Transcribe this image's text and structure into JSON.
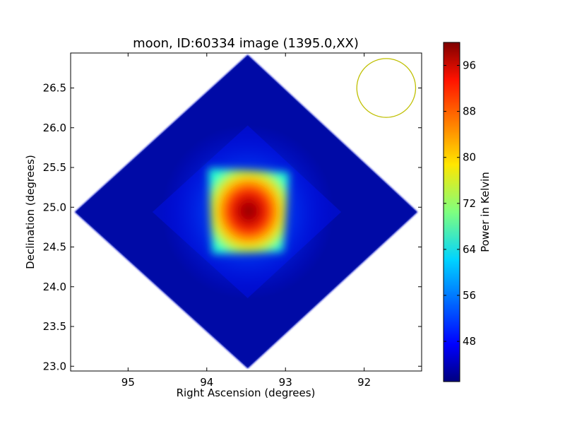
{
  "chart_data": {
    "type": "heatmap",
    "title": "moon, ID:60334 image (1395.0,XX)",
    "xlabel": "Right Ascension (degrees)",
    "ylabel": "Declination (degrees)",
    "xlim": [
      95.73,
      91.27
    ],
    "ylim": [
      22.94,
      26.94
    ],
    "x_axis_inverted": true,
    "x_ticks": [
      95,
      94,
      93,
      92
    ],
    "x_tick_labels": [
      "95",
      "94",
      "93",
      "92"
    ],
    "y_ticks": [
      23.0,
      23.5,
      24.0,
      24.5,
      25.0,
      25.5,
      26.0,
      26.5
    ],
    "y_tick_labels": [
      "23.0",
      "23.5",
      "24.0",
      "24.5",
      "25.0",
      "25.5",
      "26.0",
      "26.5"
    ],
    "grid": false,
    "colormap": "jet",
    "colorbar": {
      "label": "Power in Kelvin",
      "range": [
        41,
        100
      ],
      "ticks": [
        48,
        56,
        64,
        72,
        80,
        88,
        96
      ],
      "tick_labels": [
        "48",
        "56",
        "64",
        "72",
        "80",
        "88",
        "96"
      ]
    },
    "image_footprint": {
      "shape": "diamond",
      "center": {
        "ra": 93.48,
        "dec": 24.94
      },
      "vertices": [
        {
          "ra": 93.48,
          "dec": 26.92
        },
        {
          "ra": 91.32,
          "dec": 24.94
        },
        {
          "ra": 93.48,
          "dec": 22.97
        },
        {
          "ra": 95.68,
          "dec": 24.94
        }
      ]
    },
    "source": {
      "center": {
        "ra": 93.48,
        "dec": 24.94
      },
      "peak_value": 99,
      "core_half_width_deg": 0.5,
      "background_value": 43
    },
    "beam_circle": {
      "center": {
        "ra": 91.72,
        "dec": 26.5
      },
      "radius_deg": 0.37,
      "color": "#bfbf00"
    }
  }
}
